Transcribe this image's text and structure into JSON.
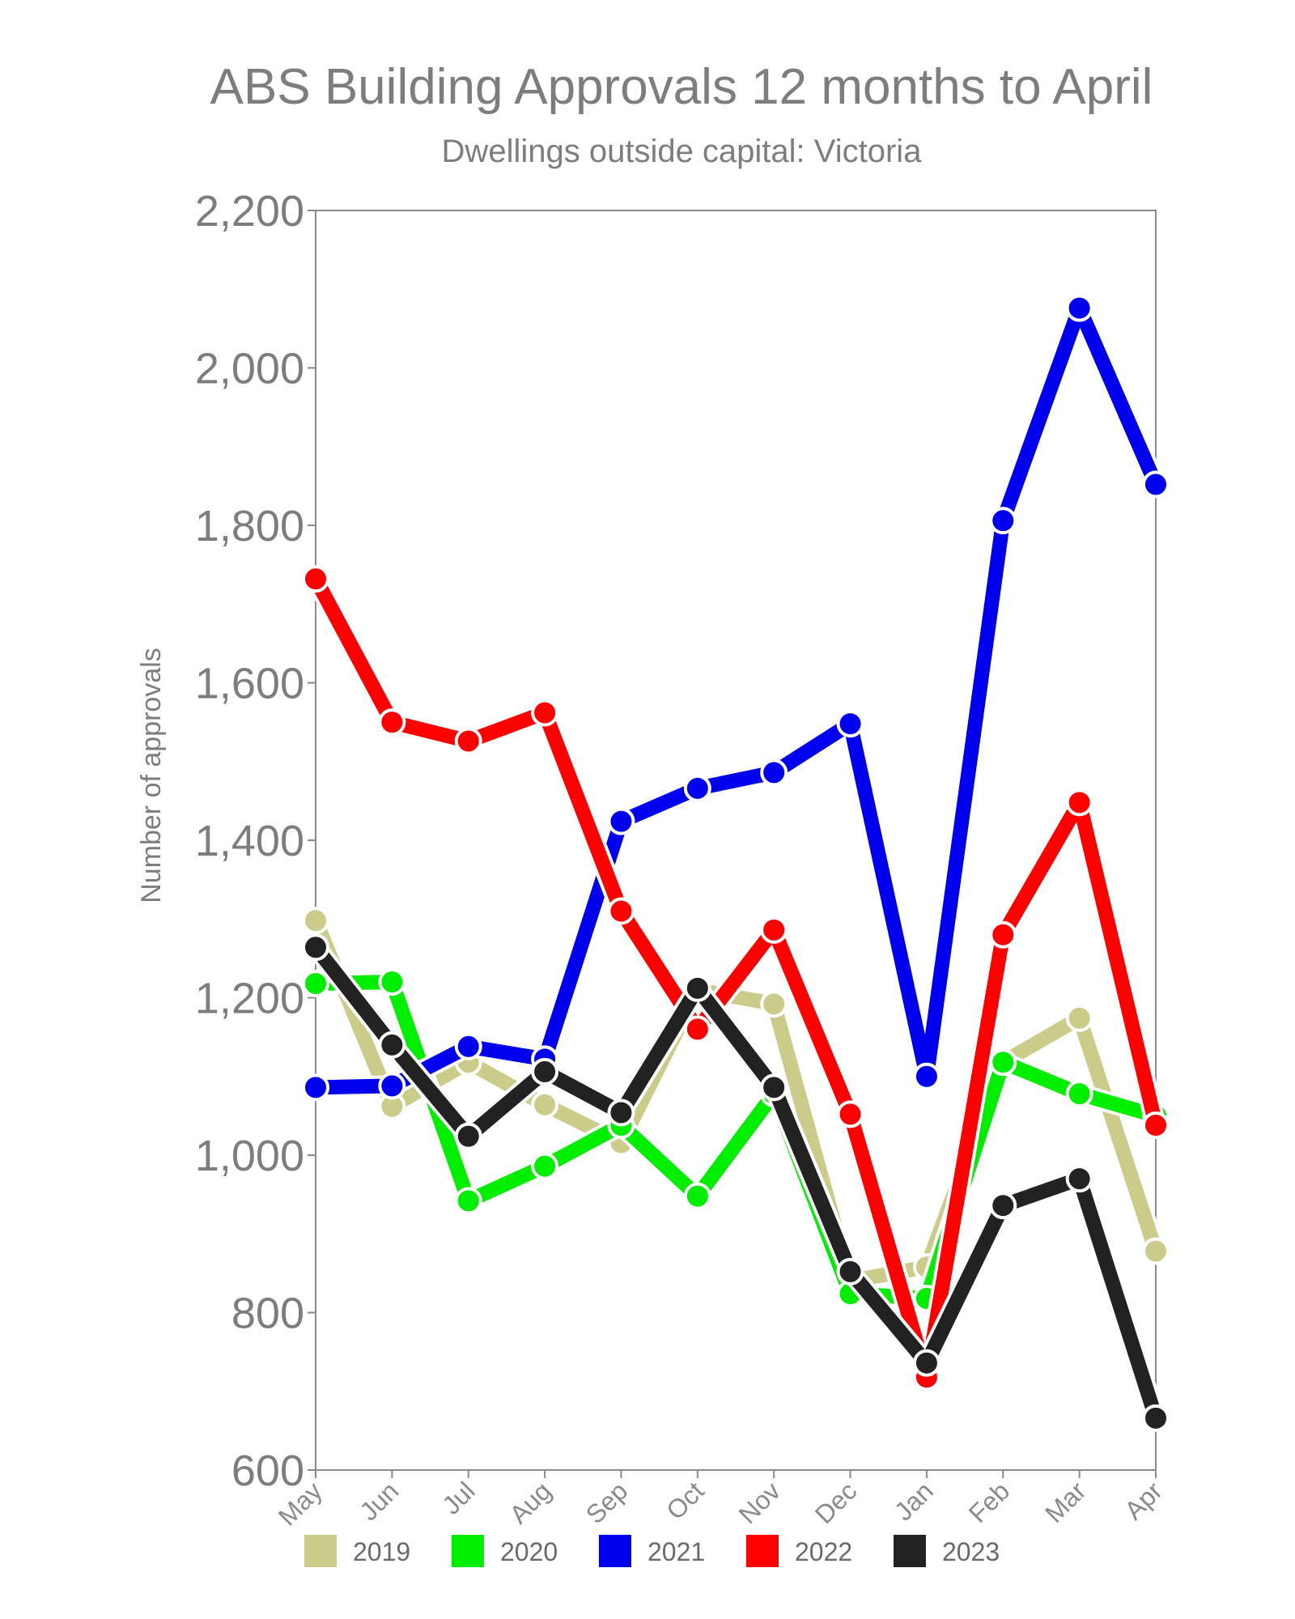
{
  "chart_data": {
    "type": "line",
    "title": "ABS Building Approvals 12 months to April",
    "subtitle": "Dwellings outside capital: Victoria",
    "xlabel": "",
    "ylabel": "Number of approvals",
    "categories": [
      "May",
      "Jun",
      "Jul",
      "Aug",
      "Sep",
      "Oct",
      "Nov",
      "Dec",
      "Jan",
      "Feb",
      "Mar",
      "Apr"
    ],
    "ylim": [
      600,
      2200
    ],
    "yticks": [
      600,
      800,
      1000,
      1200,
      1400,
      1600,
      1800,
      2000,
      2200
    ],
    "ytick_labels": [
      "600",
      "800",
      "1,000",
      "1,200",
      "1,400",
      "1,600",
      "1,800",
      "2,000",
      "2,200"
    ],
    "grid": false,
    "legend_position": "bottom",
    "series": [
      {
        "name": "2019",
        "color": "#cccc8a",
        "values": [
          1298,
          1062,
          1118,
          1064,
          1016,
          1210,
          1192,
          840,
          858,
          1118,
          1174,
          878
        ]
      },
      {
        "name": "2020",
        "color": "#00ee00",
        "values": [
          1218,
          1220,
          942,
          986,
          1038,
          948,
          1078,
          824,
          818,
          1118,
          1078,
          1050
        ]
      },
      {
        "name": "2021",
        "color": "#0000ee",
        "values": [
          1086,
          1088,
          1138,
          1122,
          1424,
          1466,
          1486,
          1548,
          1100,
          1806,
          2076,
          1852
        ]
      },
      {
        "name": "2022",
        "color": "#ff0000",
        "values": [
          1732,
          1550,
          1526,
          1562,
          1310,
          1160,
          1286,
          1052,
          718,
          1280,
          1448,
          1038
        ]
      },
      {
        "name": "2023",
        "color": "#222222",
        "values": [
          1264,
          1140,
          1024,
          1106,
          1054,
          1212,
          1086,
          852,
          736,
          936,
          970,
          666
        ]
      }
    ]
  }
}
